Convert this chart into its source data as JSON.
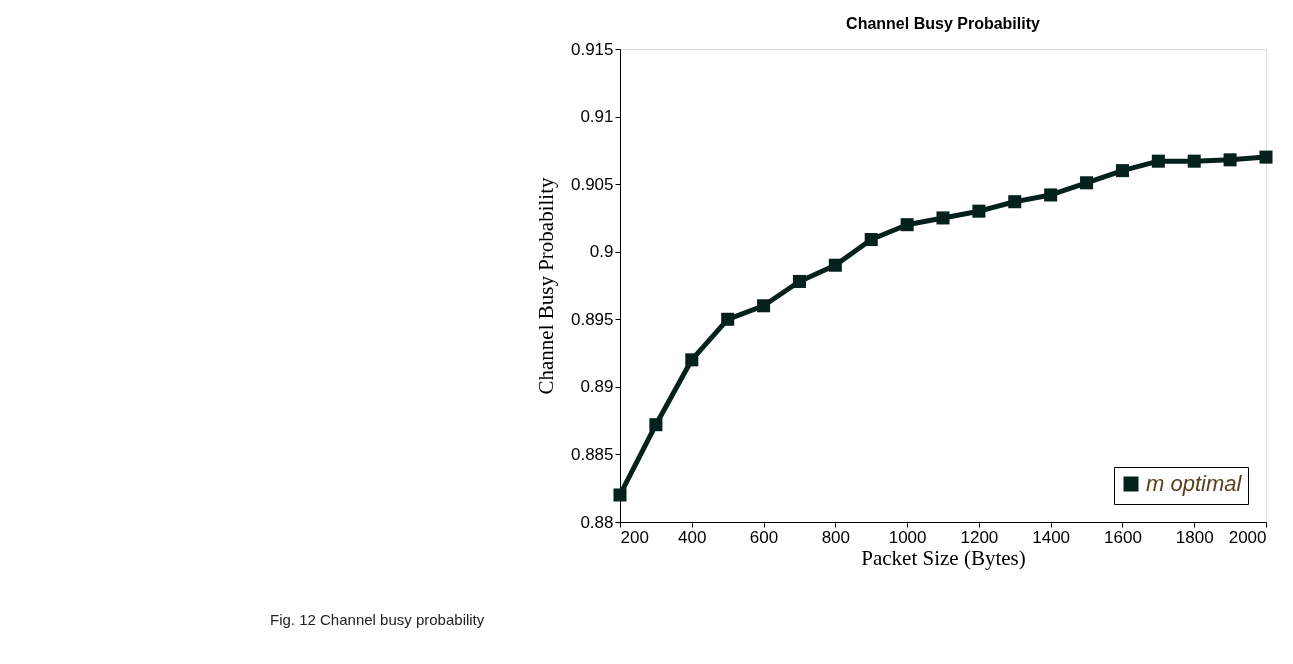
{
  "chart_data": {
    "type": "line",
    "title": "Channel Busy Probability",
    "xlabel": "Packet Size (Bytes)",
    "ylabel": "Channel Busy Probability",
    "x": [
      200,
      300,
      400,
      500,
      600,
      700,
      800,
      900,
      1000,
      1100,
      1200,
      1300,
      1400,
      1500,
      1600,
      1700,
      1800,
      1900,
      2000
    ],
    "series": [
      {
        "name": "m optimal",
        "color": "#05211c",
        "values": [
          0.882,
          0.8872,
          0.892,
          0.895,
          0.896,
          0.8978,
          0.899,
          0.9009,
          0.902,
          0.9025,
          0.903,
          0.9037,
          0.9042,
          0.9051,
          0.906,
          0.9067,
          0.9067,
          0.9068,
          0.907
        ]
      }
    ],
    "xlim": [
      200,
      2000
    ],
    "xticks": [
      200,
      400,
      600,
      800,
      1000,
      1200,
      1400,
      1600,
      1800,
      2000
    ],
    "ylim": [
      0.88,
      0.915
    ],
    "yticks": [
      0.88,
      0.885,
      0.89,
      0.895,
      0.9,
      0.905,
      0.91,
      0.915
    ],
    "grid": false,
    "legend": "bottom right",
    "marker": "square",
    "line_style": "solid",
    "annotations": [
      "Fig. 12 Channel busy probability"
    ]
  }
}
